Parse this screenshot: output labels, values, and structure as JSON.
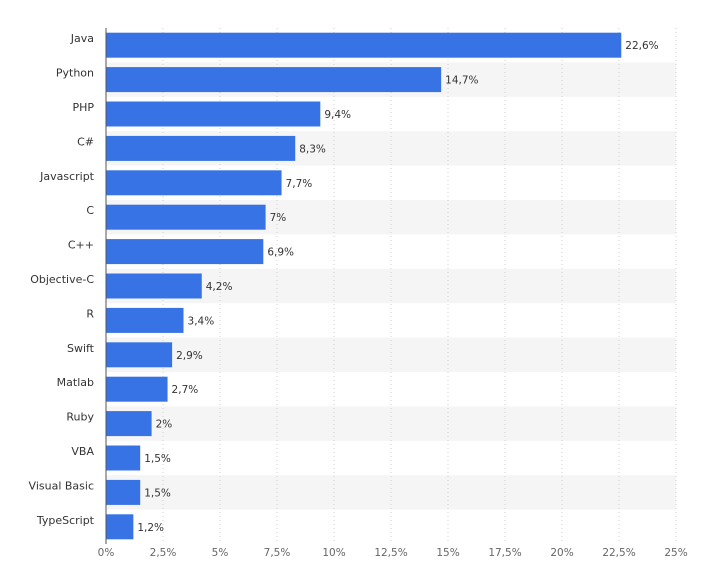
{
  "chart_data": {
    "type": "bar",
    "orientation": "horizontal",
    "categories": [
      "Java",
      "Python",
      "PHP",
      "C#",
      "Javascript",
      "C",
      "C++",
      "Objective-C",
      "R",
      "Swift",
      "Matlab",
      "Ruby",
      "VBA",
      "Visual Basic",
      "TypeScript"
    ],
    "values": [
      22.6,
      14.7,
      9.4,
      8.3,
      7.7,
      7,
      6.9,
      4.2,
      3.4,
      2.9,
      2.7,
      2,
      1.5,
      1.5,
      1.2
    ],
    "value_labels": [
      "22,6%",
      "14,7%",
      "9,4%",
      "8,3%",
      "7,7%",
      "7%",
      "6,9%",
      "4,2%",
      "3,4%",
      "2,9%",
      "2,7%",
      "2%",
      "1,5%",
      "1,5%",
      "1,2%"
    ],
    "xlim": [
      0,
      25
    ],
    "x_ticks": [
      0,
      2.5,
      5,
      7.5,
      10,
      12.5,
      15,
      17.5,
      20,
      22.5,
      25
    ],
    "x_tick_labels": [
      "0%",
      "2,5%",
      "5%",
      "7,5%",
      "10%",
      "12,5%",
      "15%",
      "17,5%",
      "20%",
      "22,5%",
      "25%"
    ],
    "title": "",
    "xlabel": "",
    "ylabel": "",
    "grid": "vertical dotted",
    "legend": "none",
    "colors": {
      "bar": "#3773e5",
      "stripe": "#f5f5f5",
      "grid": "#cfcfcf",
      "axis": "#555555",
      "text": "#333333"
    }
  }
}
